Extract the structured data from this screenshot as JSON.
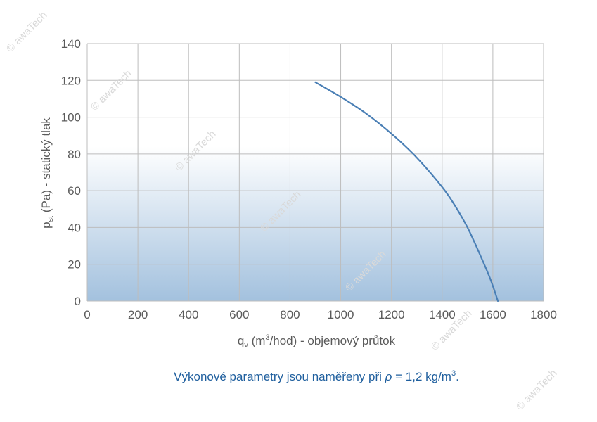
{
  "chart_data": {
    "type": "line",
    "xlabel": {
      "base": "q",
      "sub": "v",
      "pre_sup": " (m",
      "sup": "3",
      "post_sup": "/hod) - objemový průtok"
    },
    "ylabel": {
      "base": "p",
      "sub": "st",
      "rest": " (Pa) - statický tlak"
    },
    "xlim": [
      0,
      1800
    ],
    "ylim": [
      0,
      140
    ],
    "xticks": [
      "0",
      "200",
      "400",
      "600",
      "800",
      "1000",
      "1200",
      "1400",
      "1600",
      "1800"
    ],
    "yticks": [
      "0",
      "20",
      "40",
      "60",
      "80",
      "100",
      "120",
      "140"
    ],
    "grid": true,
    "series": [
      {
        "color": "#4a7fb5",
        "x": [
          900,
          1000,
          1100,
          1200,
          1300,
          1400,
          1450,
          1500,
          1550,
          1590,
          1620
        ],
        "y": [
          119,
          111,
          102,
          91,
          78,
          62,
          52,
          40,
          25,
          12,
          0
        ]
      }
    ],
    "fill_gradient": {
      "top": "#ffffff",
      "bottom": "#a3c1de"
    }
  },
  "note": {
    "pre": "Výkonové parametry jsou naměřeny při ",
    "rho": "ρ",
    "mid": " = 1,2 kg/m",
    "sup": "3",
    "post": "."
  },
  "watermark": "© awaTech"
}
